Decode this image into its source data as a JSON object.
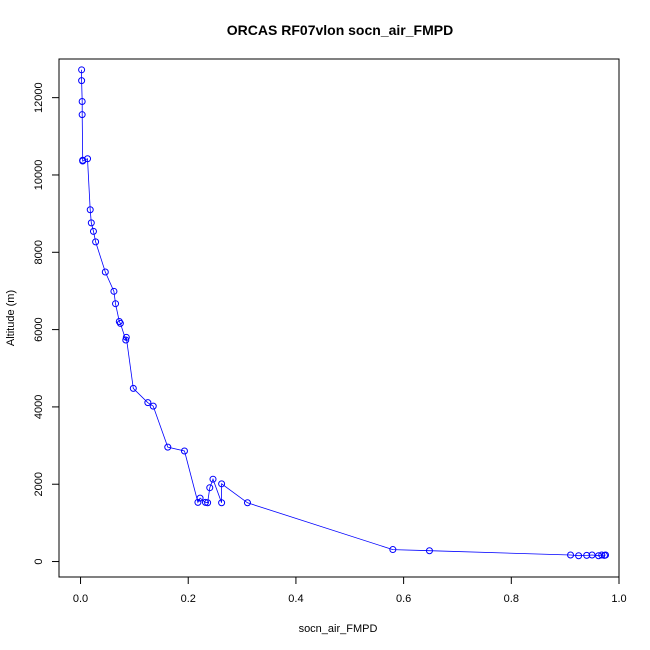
{
  "chart_data": {
    "type": "scatter",
    "title": "ORCAS RF07vlon socn_air_FMPD",
    "xlabel": "socn_air_FMPD",
    "ylabel": "Altitude (m)",
    "xlim": [
      -0.04,
      1.0
    ],
    "ylim": [
      -400,
      13000
    ],
    "x_ticks": [
      0.0,
      0.2,
      0.4,
      0.6,
      0.8,
      1.0
    ],
    "x_tick_labels": [
      "0.0",
      "0.2",
      "0.4",
      "0.6",
      "0.8",
      "1.0"
    ],
    "y_ticks": [
      0,
      2000,
      4000,
      6000,
      8000,
      10000,
      12000
    ],
    "y_tick_labels": [
      "0",
      "2000",
      "4000",
      "6000",
      "8000",
      "10000",
      "12000"
    ],
    "color": "#0000ff",
    "grid": false,
    "series": [
      {
        "x": [
          0.002,
          0.002,
          0.003,
          0.003,
          0.004,
          0.004,
          0.013,
          0.018,
          0.02,
          0.024,
          0.028,
          0.046,
          0.062,
          0.065,
          0.072,
          0.074,
          0.084,
          0.085,
          0.098,
          0.125,
          0.135,
          0.162,
          0.193,
          0.218,
          0.222,
          0.232,
          0.236,
          0.24,
          0.246,
          0.262,
          0.262,
          0.31,
          0.58,
          0.648,
          0.91,
          0.925,
          0.94,
          0.95,
          0.962,
          0.968,
          0.973,
          0.975
        ],
        "y": [
          12720,
          12440,
          11900,
          11560,
          10380,
          10360,
          10420,
          9100,
          8760,
          8540,
          8270,
          7490,
          6990,
          6670,
          6210,
          6160,
          5730,
          5800,
          4480,
          4110,
          4020,
          2960,
          2860,
          1530,
          1640,
          1530,
          1520,
          1910,
          2130,
          1520,
          2010,
          1520,
          310,
          280,
          170,
          150,
          160,
          170,
          150,
          170,
          160,
          170
        ]
      }
    ]
  }
}
